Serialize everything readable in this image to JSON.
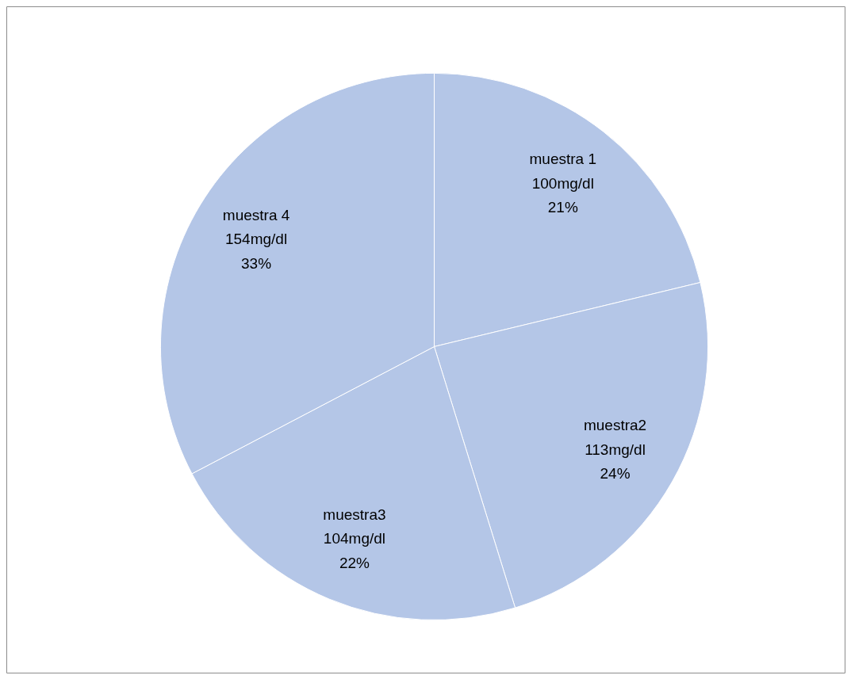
{
  "chart_data": {
    "type": "pie",
    "categories": [
      "muestra 1",
      "muestra2",
      "muestra3",
      "muestra 4"
    ],
    "values": [
      100,
      113,
      104,
      154
    ],
    "value_labels": [
      "100mg/dl\n21%",
      "113mg/dl\n24%",
      "104mg/dl\n22%",
      "154mg/dl\n33%"
    ],
    "colors": [
      "#b4c6e7",
      "#b4c6e7",
      "#b4c6e7",
      "#b4c6e7"
    ]
  }
}
